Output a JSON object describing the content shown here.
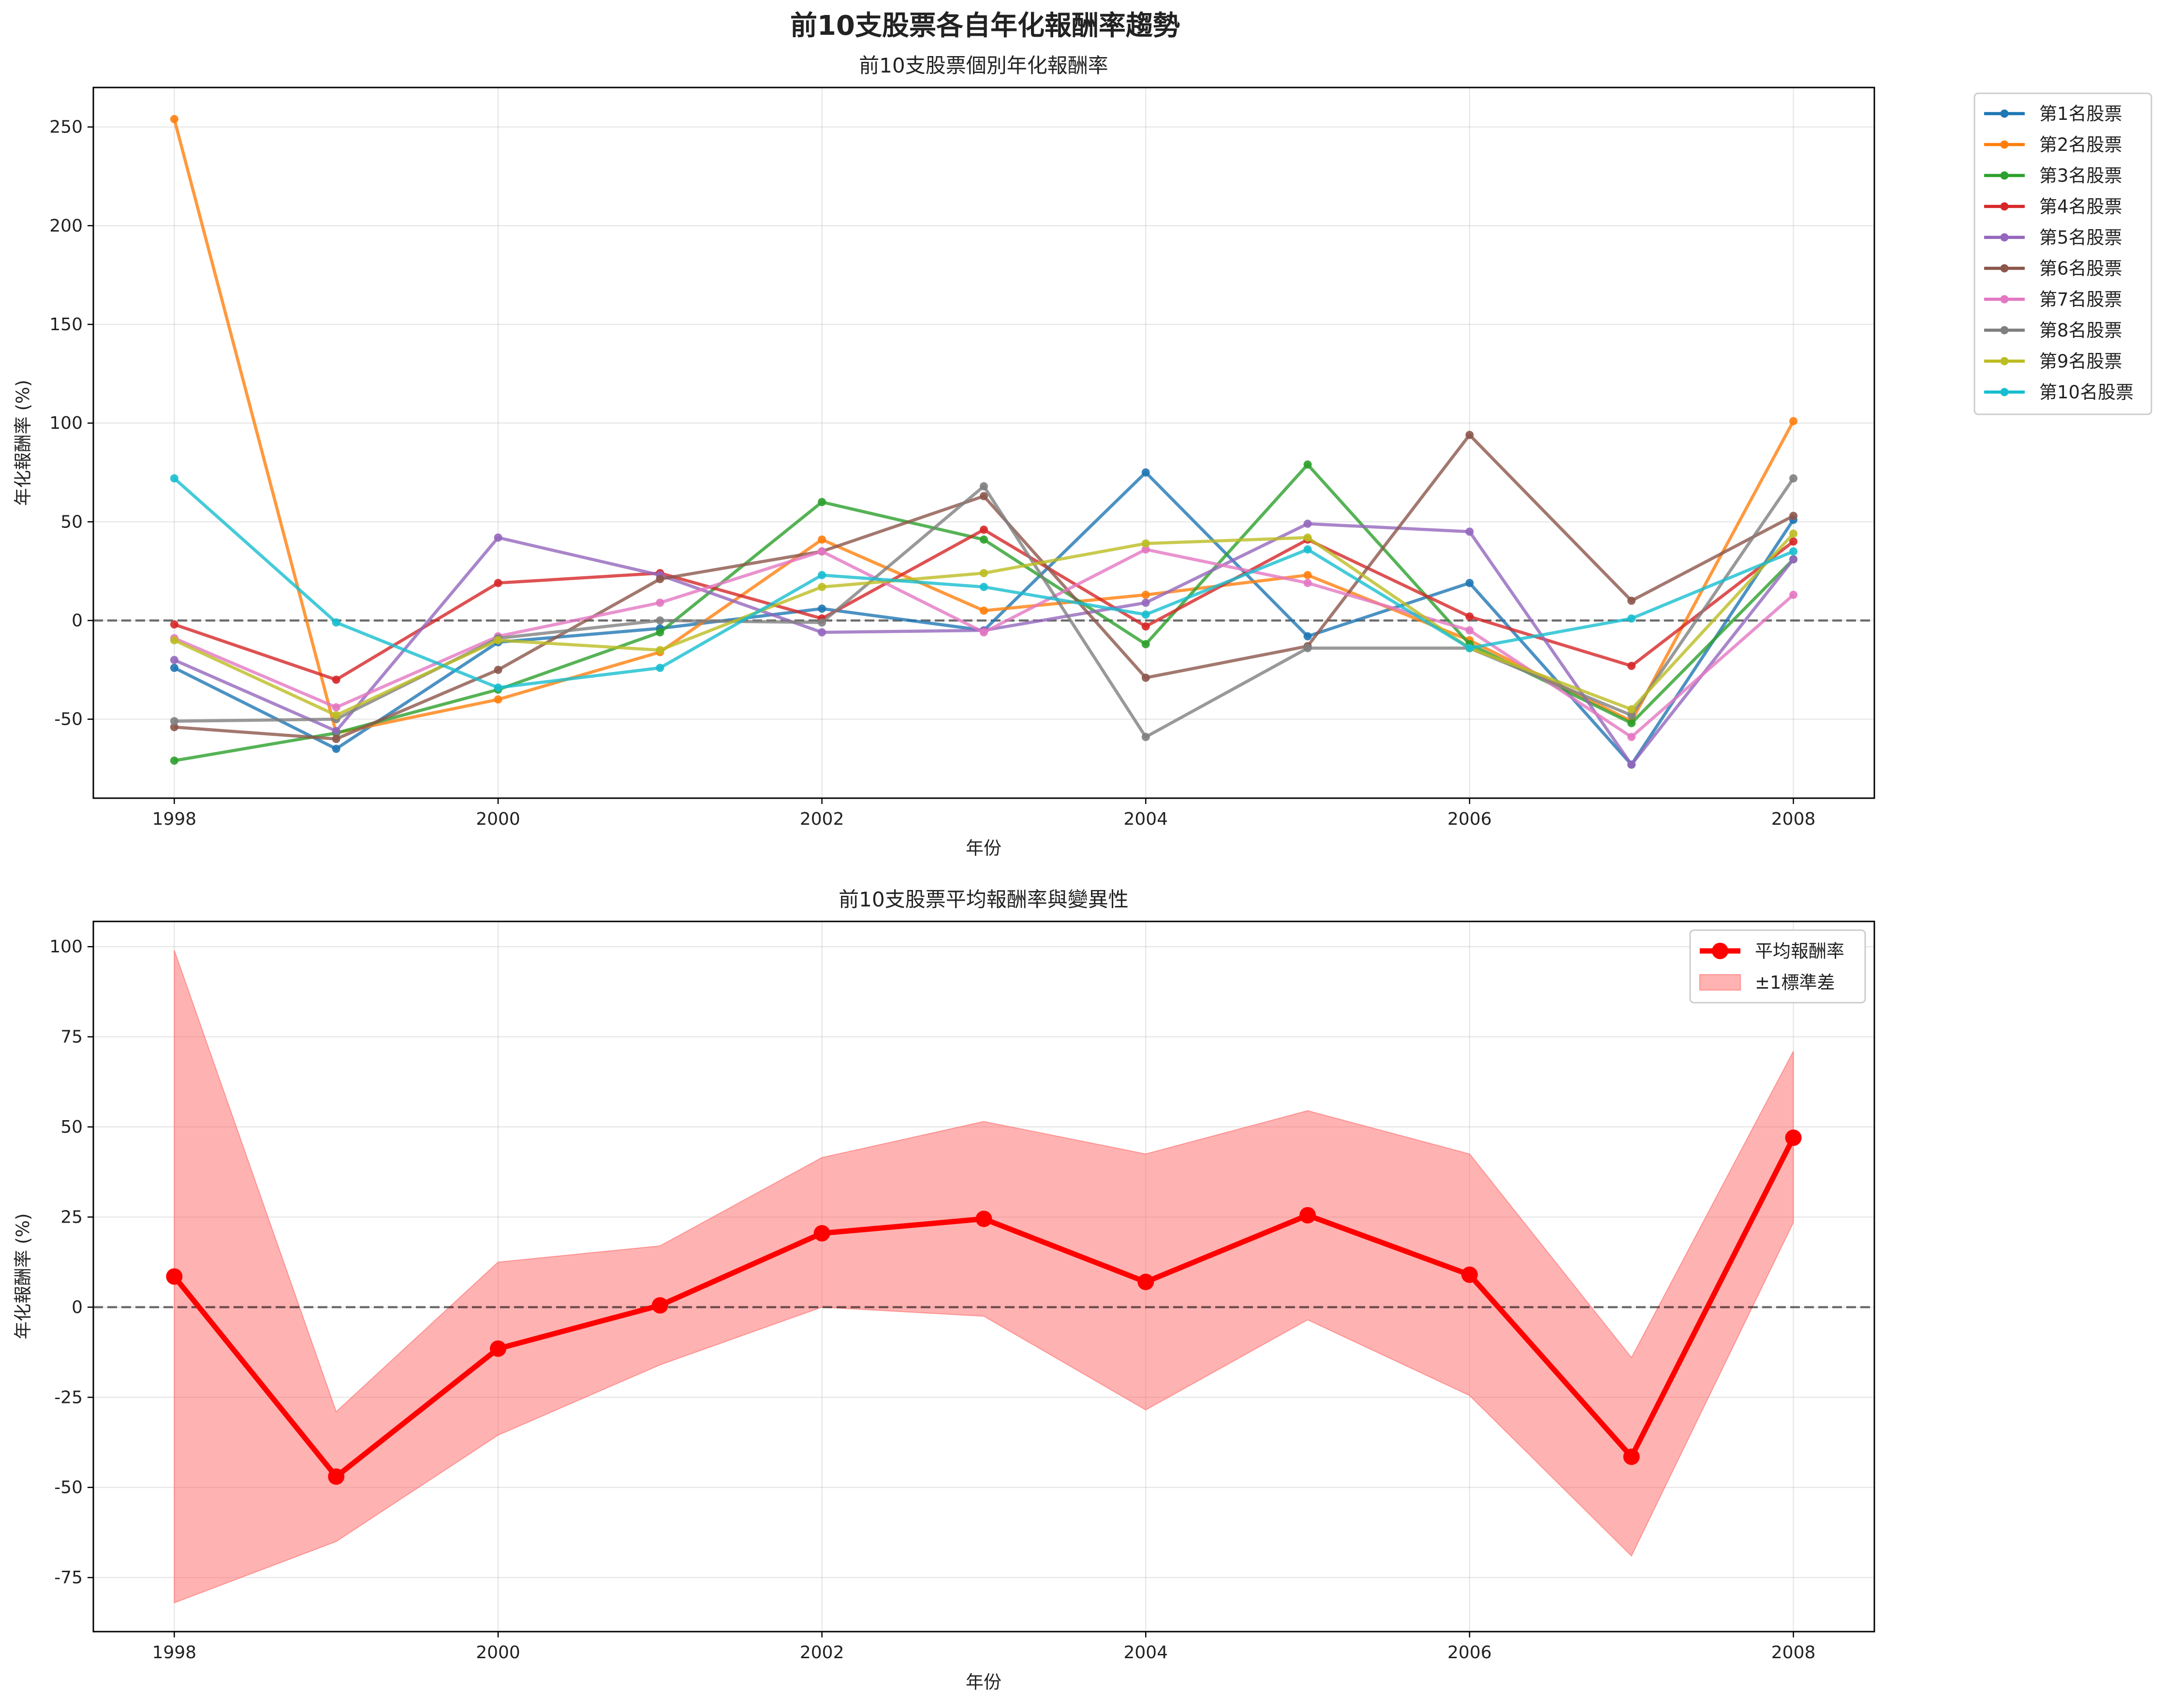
{
  "figure": {
    "suptitle": "前10支股票各自年化報酬率趨勢"
  },
  "chart_data": [
    {
      "type": "line",
      "title": "前10支股票個別年化報酬率",
      "xlabel": "年份",
      "ylabel": "年化報酬率 (%)",
      "x": [
        1998,
        1999,
        2000,
        2001,
        2002,
        2003,
        2004,
        2005,
        2006,
        2007,
        2008
      ],
      "xlim": [
        1997.5,
        2008.5
      ],
      "ylim": [
        -90,
        270
      ],
      "xticks": [
        1998,
        2000,
        2002,
        2004,
        2006,
        2008
      ],
      "yticks": [
        -50,
        0,
        50,
        100,
        150,
        200,
        250
      ],
      "grid": true,
      "legend_position": "outside-top-right",
      "reference_line": 0,
      "series": [
        {
          "name": "第1名股票",
          "color": "#1f77b4",
          "values": [
            -24,
            -65,
            -11,
            -4,
            6,
            -5,
            75,
            -8,
            19,
            -73,
            51
          ]
        },
        {
          "name": "第2名股票",
          "color": "#ff7f0e",
          "values": [
            254,
            -57,
            -40,
            -16,
            41,
            5,
            13,
            23,
            -10,
            -51,
            101
          ]
        },
        {
          "name": "第3名股票",
          "color": "#2ca02c",
          "values": [
            -71,
            -57,
            -35,
            -6,
            60,
            41,
            -12,
            79,
            -12,
            -52,
            31
          ]
        },
        {
          "name": "第4名股票",
          "color": "#d62728",
          "values": [
            -2,
            -30,
            19,
            24,
            1,
            46,
            -3,
            41,
            2,
            -23,
            40
          ]
        },
        {
          "name": "第5名股票",
          "color": "#9467bd",
          "values": [
            -20,
            -56,
            42,
            23,
            -6,
            -5,
            9,
            49,
            45,
            -73,
            31
          ]
        },
        {
          "name": "第6名股票",
          "color": "#8c564b",
          "values": [
            -54,
            -60,
            -25,
            21,
            35,
            63,
            -29,
            -13,
            94,
            10,
            53
          ]
        },
        {
          "name": "第7名股票",
          "color": "#e377c2",
          "values": [
            -9,
            -44,
            -8,
            9,
            35,
            -6,
            36,
            19,
            -5,
            -59,
            13
          ]
        },
        {
          "name": "第8名股票",
          "color": "#7f7f7f",
          "values": [
            -51,
            -50,
            -9,
            0,
            -1,
            68,
            -59,
            -14,
            -14,
            -48,
            72
          ]
        },
        {
          "name": "第9名股票",
          "color": "#bcbd22",
          "values": [
            -10,
            -48,
            -10,
            -15,
            17,
            24,
            39,
            42,
            -14,
            -45,
            44
          ]
        },
        {
          "name": "第10名股票",
          "color": "#17becf",
          "values": [
            72,
            -1,
            -34,
            -24,
            23,
            17,
            3,
            36,
            -14,
            1,
            35
          ]
        }
      ]
    },
    {
      "type": "line",
      "title": "前10支股票平均報酬率與變異性",
      "xlabel": "年份",
      "ylabel": "年化報酬率 (%)",
      "x": [
        1998,
        1999,
        2000,
        2001,
        2002,
        2003,
        2004,
        2005,
        2006,
        2007,
        2008
      ],
      "xlim": [
        1997.5,
        2008.5
      ],
      "ylim": [
        -90,
        107
      ],
      "xticks": [
        1998,
        2000,
        2002,
        2004,
        2006,
        2008
      ],
      "yticks": [
        -75,
        -50,
        -25,
        0,
        25,
        50,
        75,
        100
      ],
      "grid": true,
      "legend_position": "top-right",
      "reference_line": 0,
      "series": [
        {
          "name": "平均報酬率",
          "color": "#ff0000",
          "values": [
            8.5,
            -47,
            -11.5,
            0.5,
            20.5,
            24.5,
            7,
            25.5,
            9,
            -41.5,
            47
          ]
        }
      ],
      "band": {
        "name": "±1標準差",
        "color": "#ff6666",
        "upper": [
          99,
          -29,
          12.5,
          17,
          41.5,
          51.5,
          42.5,
          54.5,
          42.5,
          -14,
          71
        ],
        "lower": [
          -82,
          -65,
          -35.5,
          -16,
          0,
          -2.5,
          -28.5,
          -3.5,
          -24.5,
          -69,
          23.5
        ]
      }
    }
  ]
}
